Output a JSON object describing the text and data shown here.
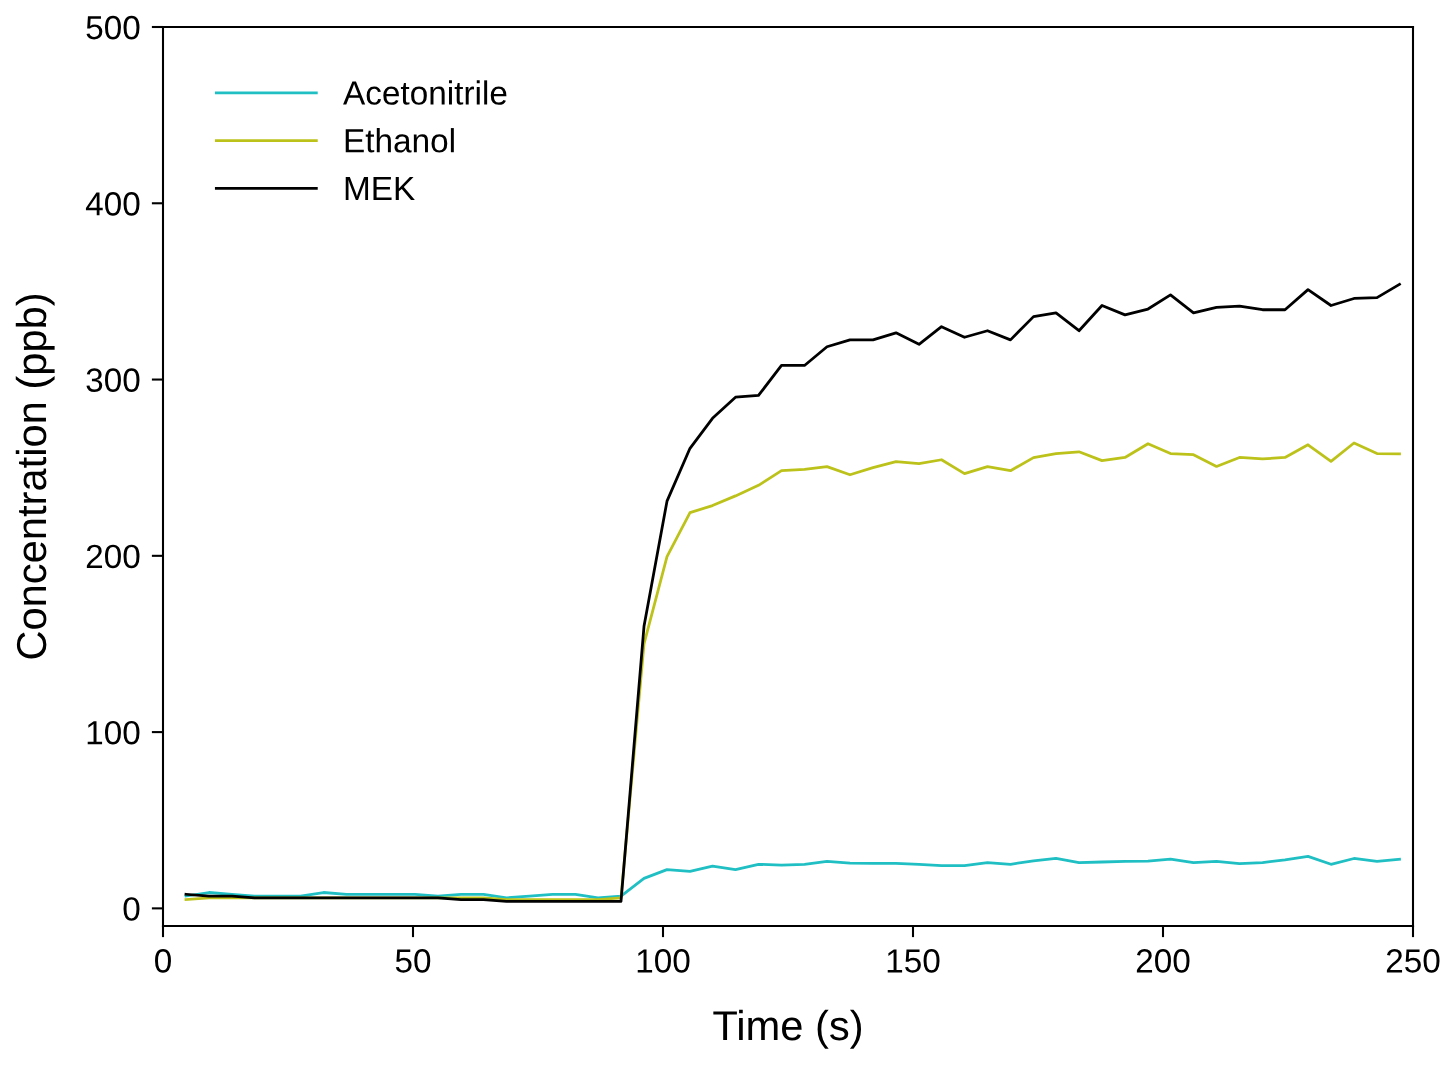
{
  "chart_data": {
    "type": "line",
    "xlabel": "Time (s)",
    "ylabel": "Concentration (ppb)",
    "xlim": [
      0,
      250
    ],
    "xticks": [
      0,
      50,
      100,
      150,
      200,
      250
    ],
    "ylim": [
      -10,
      500
    ],
    "yticks": [
      0,
      100,
      200,
      300,
      400,
      500
    ],
    "grid": false,
    "legend": "top left",
    "marker": "none",
    "line_style": "solid",
    "x": [
      4.6,
      9.2,
      13.8,
      18.3,
      22.9,
      27.5,
      32.1,
      36.7,
      41.2,
      45.8,
      50.4,
      55.0,
      59.6,
      64.1,
      68.7,
      73.3,
      77.9,
      82.5,
      87.0,
      91.6,
      96.2,
      100.8,
      105.4,
      109.9,
      114.5,
      119.1,
      123.7,
      128.3,
      132.8,
      137.4,
      142.0,
      146.6,
      151.2,
      155.7,
      160.3,
      164.9,
      169.5,
      174.1,
      178.6,
      183.2,
      187.8,
      192.4,
      197.0,
      201.5,
      206.1,
      210.7,
      215.3,
      219.9,
      224.4,
      229.0,
      233.6,
      238.2,
      242.8,
      247.3
    ],
    "series": [
      {
        "name": "Acetonitrile",
        "color": "#1fbfc4",
        "values": [
          7,
          9,
          8,
          7,
          7,
          7,
          9,
          8,
          8,
          8,
          8,
          7,
          8,
          8,
          6,
          7,
          8,
          8,
          6,
          7,
          17,
          22,
          21,
          24,
          22,
          25,
          24.5,
          25,
          26.6,
          25.7,
          25.5,
          25.5,
          25,
          24.3,
          24.3,
          26,
          25,
          27,
          28.3,
          26,
          26.3,
          26.6,
          26.8,
          28,
          26,
          26.6,
          25.4,
          26,
          27.5,
          29.5,
          25,
          28.3,
          26.6,
          27.8
        ]
      },
      {
        "name": "Ethanol",
        "color": "#bcc21a",
        "values": [
          5,
          6,
          6,
          6,
          6,
          6,
          6,
          6,
          6,
          6,
          6,
          6,
          6,
          6,
          5,
          5,
          5,
          5,
          5,
          6,
          150,
          199.5,
          224.5,
          228.5,
          234,
          240,
          248.3,
          249,
          250.6,
          246,
          250,
          253.4,
          252.3,
          254.5,
          246.6,
          250.6,
          248.3,
          255.7,
          258,
          259,
          254,
          255.8,
          263.6,
          258,
          257.4,
          250.7,
          255.8,
          255,
          255.8,
          263,
          253.6,
          264,
          258,
          257.8
        ]
      },
      {
        "name": "MEK",
        "color": "#000000",
        "values": [
          8,
          7,
          7,
          6,
          6,
          6,
          6,
          6,
          6,
          6,
          6,
          6,
          5,
          5,
          4,
          4,
          4,
          4,
          4,
          4,
          160,
          231,
          261,
          278,
          290,
          291,
          308,
          308,
          318.6,
          322.5,
          322.5,
          326.5,
          320,
          330,
          324,
          327.7,
          322.5,
          335.7,
          337.8,
          327.7,
          342,
          336.7,
          340,
          348,
          337.8,
          341,
          341.6,
          339.6,
          339.6,
          351,
          342,
          346,
          346.5,
          354
        ]
      }
    ]
  }
}
